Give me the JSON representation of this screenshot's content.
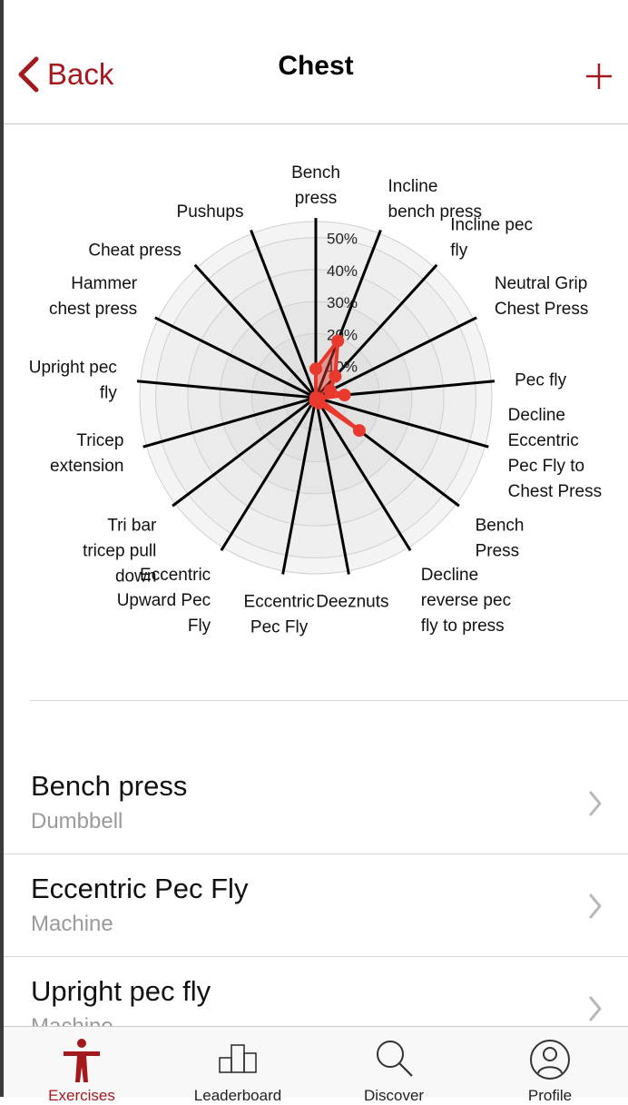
{
  "nav": {
    "back_label": "Back",
    "title": "Chest"
  },
  "chart_data": {
    "type": "radar",
    "ticks": [
      "10%",
      "20%",
      "30%",
      "40%",
      "50%"
    ],
    "categories": [
      [
        "Bench",
        "press"
      ],
      [
        "Incline",
        "bench press"
      ],
      [
        "Incline pec",
        "fly"
      ],
      [
        "Neutral Grip",
        "Chest Press"
      ],
      [
        "Pec fly"
      ],
      [
        "Decline",
        "Eccentric",
        "Pec Fly to",
        "Chest Press"
      ],
      [
        "Bench",
        "Press"
      ],
      [
        "Decline",
        "reverse pec",
        "fly to press"
      ],
      [
        "Deeznuts"
      ],
      [
        "Eccentric",
        "Pec Fly"
      ],
      [
        "Eccentric",
        "Upward Pec",
        "Fly"
      ],
      [
        "Tri bar",
        "tricep pull",
        "down"
      ],
      [
        "Tricep",
        "extension"
      ],
      [
        "Upright pec",
        "fly"
      ],
      [
        "Hammer",
        "chest press"
      ],
      [
        "Cheat press"
      ],
      [
        "Pushups"
      ]
    ],
    "values": [
      9,
      19,
      9,
      5,
      9,
      1,
      17,
      2,
      1,
      1,
      0,
      0,
      0,
      0,
      0,
      0,
      0
    ],
    "range": [
      0,
      55
    ],
    "series_color": "#e8392e"
  },
  "exercises": [
    {
      "name": "Bench press",
      "equipment": "Dumbbell"
    },
    {
      "name": "Eccentric Pec Fly",
      "equipment": "Machine"
    },
    {
      "name": "Upright pec fly",
      "equipment": "Machine"
    }
  ],
  "tabs": [
    {
      "label": "Exercises",
      "active": true
    },
    {
      "label": "Leaderboard"
    },
    {
      "label": "Discover"
    },
    {
      "label": "Profile"
    }
  ],
  "colors": {
    "accent": "#a3191d"
  }
}
